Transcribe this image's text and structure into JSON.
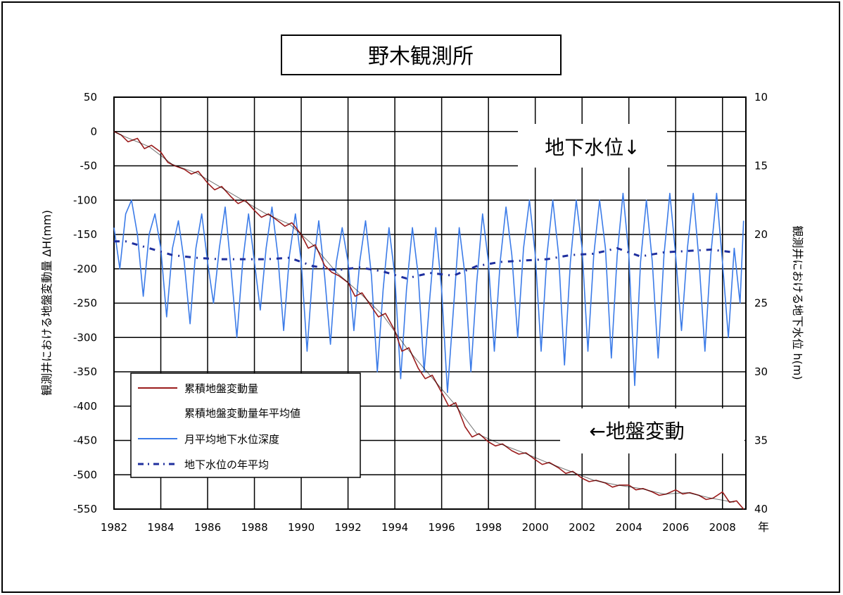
{
  "chart_data": {
    "type": "line",
    "title": "野木観測所",
    "x_unit_label": "年",
    "x_ticks": [
      1982,
      1984,
      1986,
      1988,
      1990,
      1992,
      1994,
      1996,
      1998,
      2000,
      2002,
      2004,
      2006,
      2008
    ],
    "x_tick_labels": [
      "1982",
      "1984",
      "1986",
      "1988",
      "1990",
      "1992",
      "1994",
      "1996",
      "1998",
      "2000",
      "2002",
      "2004",
      "2006",
      "2008"
    ],
    "xlim": [
      1982,
      2009
    ],
    "ylabel_left": "観測井における地盤変動量 ΔH(mm)",
    "ylim_left": [
      50,
      -550
    ],
    "yticks_left": [
      50,
      0,
      -50,
      -100,
      -150,
      -200,
      -250,
      -300,
      -350,
      -400,
      -450,
      -500,
      -550
    ],
    "ylabel_right": "観測井における地下水位 h(m)",
    "ylim_right": [
      10,
      40
    ],
    "yticks_right": [
      10,
      15,
      20,
      25,
      30,
      35,
      40
    ],
    "grid": true,
    "annotations": [
      {
        "text": "地下水位↓"
      },
      {
        "text": "←地盤変動"
      }
    ],
    "legend": {
      "placement": "lower-left",
      "entries": [
        "累積地盤変動量",
        "累積地盤変動量年平均値",
        "月平均地下水位深度",
        "地下水位の年平均"
      ]
    },
    "series": [
      {
        "name": "累積地盤変動量",
        "axis": "left",
        "style": "solid",
        "color": "#9b1c1c",
        "x": [
          1982.0,
          1982.3,
          1982.6,
          1983.0,
          1983.3,
          1983.6,
          1984.0,
          1984.3,
          1984.6,
          1985.0,
          1985.3,
          1985.6,
          1986.0,
          1986.3,
          1986.6,
          1987.0,
          1987.3,
          1987.6,
          1988.0,
          1988.3,
          1988.6,
          1989.0,
          1989.3,
          1989.6,
          1990.0,
          1990.3,
          1990.6,
          1991.0,
          1991.3,
          1991.6,
          1992.0,
          1992.3,
          1992.6,
          1993.0,
          1993.3,
          1993.6,
          1994.0,
          1994.3,
          1994.6,
          1995.0,
          1995.3,
          1995.6,
          1996.0,
          1996.3,
          1996.6,
          1997.0,
          1997.3,
          1997.6,
          1998.0,
          1998.3,
          1998.6,
          1999.0,
          1999.3,
          1999.6,
          2000.0,
          2000.3,
          2000.6,
          2001.0,
          2001.3,
          2001.6,
          2002.0,
          2002.3,
          2002.6,
          2003.0,
          2003.3,
          2003.6,
          2004.0,
          2004.3,
          2004.6,
          2005.0,
          2005.3,
          2005.6,
          2006.0,
          2006.3,
          2006.6,
          2007.0,
          2007.3,
          2007.6,
          2008.0,
          2008.3,
          2008.6,
          2008.9
        ],
        "values": [
          0,
          -5,
          -15,
          -10,
          -25,
          -20,
          -30,
          -45,
          -50,
          -55,
          -62,
          -58,
          -75,
          -85,
          -80,
          -95,
          -105,
          -100,
          -115,
          -125,
          -120,
          -130,
          -138,
          -133,
          -150,
          -170,
          -165,
          -195,
          -205,
          -210,
          -220,
          -240,
          -235,
          -255,
          -270,
          -265,
          -290,
          -320,
          -315,
          -345,
          -360,
          -355,
          -380,
          -400,
          -395,
          -430,
          -445,
          -440,
          -452,
          -458,
          -455,
          -465,
          -470,
          -468,
          -478,
          -485,
          -482,
          -490,
          -498,
          -495,
          -505,
          -510,
          -508,
          -512,
          -518,
          -515,
          -515,
          -522,
          -520,
          -525,
          -530,
          -528,
          -522,
          -528,
          -526,
          -530,
          -536,
          -534,
          -525,
          -540,
          -538,
          -550
        ]
      },
      {
        "name": "累積地盤変動量年平均値",
        "axis": "left",
        "style": "solid",
        "color": "#000000",
        "x": [
          1982.0,
          1982.5,
          1983.5,
          1984.5,
          1985.5,
          1986.5,
          1987.5,
          1988.5,
          1989.5,
          1990.5,
          1991.5,
          1992.5,
          1993.5,
          1994.5,
          1995.5,
          1996.5,
          1997.5,
          1998.5,
          1999.5,
          2000.5,
          2001.5,
          2002.5,
          2003.5,
          2004.5,
          2005.5,
          2006.5,
          2007.5,
          2008.5
        ],
        "values": [
          0,
          -8,
          -22,
          -48,
          -60,
          -80,
          -100,
          -120,
          -135,
          -165,
          -205,
          -235,
          -268,
          -315,
          -355,
          -395,
          -440,
          -455,
          -468,
          -482,
          -495,
          -508,
          -515,
          -520,
          -528,
          -526,
          -534,
          -540
        ]
      },
      {
        "name": "月平均地下水位深度",
        "axis": "right",
        "style": "solid",
        "color": "#3b7be8",
        "x": [
          1982.0,
          1982.25,
          1982.5,
          1982.75,
          1983.0,
          1983.25,
          1983.5,
          1983.75,
          1984.0,
          1984.25,
          1984.5,
          1984.75,
          1985.0,
          1985.25,
          1985.5,
          1985.75,
          1986.0,
          1986.25,
          1986.5,
          1986.75,
          1987.0,
          1987.25,
          1987.5,
          1987.75,
          1988.0,
          1988.25,
          1988.5,
          1988.75,
          1989.0,
          1989.25,
          1989.5,
          1989.75,
          1990.0,
          1990.25,
          1990.5,
          1990.75,
          1991.0,
          1991.25,
          1991.5,
          1991.75,
          1992.0,
          1992.25,
          1992.5,
          1992.75,
          1993.0,
          1993.25,
          1993.5,
          1993.75,
          1994.0,
          1994.25,
          1994.5,
          1994.75,
          1995.0,
          1995.25,
          1995.5,
          1995.75,
          1996.0,
          1996.25,
          1996.5,
          1996.75,
          1997.0,
          1997.25,
          1997.5,
          1997.75,
          1998.0,
          1998.25,
          1998.5,
          1998.75,
          1999.0,
          1999.25,
          1999.5,
          1999.75,
          2000.0,
          2000.25,
          2000.5,
          2000.75,
          2001.0,
          2001.25,
          2001.5,
          2001.75,
          2002.0,
          2002.25,
          2002.5,
          2002.75,
          2003.0,
          2003.25,
          2003.5,
          2003.75,
          2004.0,
          2004.25,
          2004.5,
          2004.75,
          2005.0,
          2005.25,
          2005.5,
          2005.75,
          2006.0,
          2006.25,
          2006.5,
          2006.75,
          2007.0,
          2007.25,
          2007.5,
          2007.75,
          2008.0,
          2008.25,
          2008.5,
          2008.75,
          2008.9
        ],
        "values": [
          19.5,
          22.5,
          18.5,
          17.5,
          20.0,
          24.5,
          20.0,
          18.5,
          21.0,
          26.0,
          21.0,
          19.0,
          22.0,
          26.5,
          21.0,
          18.5,
          22.0,
          25.0,
          21.0,
          18.0,
          22.5,
          27.5,
          22.0,
          18.5,
          22.0,
          25.5,
          21.0,
          18.0,
          21.5,
          27.0,
          21.5,
          18.5,
          22.0,
          28.5,
          22.5,
          19.0,
          23.0,
          28.0,
          22.0,
          19.5,
          22.0,
          27.0,
          22.0,
          19.0,
          23.0,
          30.0,
          24.0,
          19.5,
          23.0,
          30.5,
          24.0,
          19.5,
          23.0,
          30.0,
          24.5,
          19.5,
          24.0,
          31.5,
          25.5,
          19.5,
          23.0,
          30.0,
          23.5,
          18.5,
          22.0,
          28.5,
          22.0,
          18.0,
          21.5,
          27.5,
          21.0,
          17.5,
          21.5,
          28.5,
          21.5,
          17.5,
          21.5,
          29.5,
          22.0,
          17.5,
          21.0,
          28.5,
          21.5,
          17.5,
          21.0,
          29.0,
          21.5,
          17.0,
          21.5,
          31.0,
          22.0,
          17.5,
          22.0,
          29.0,
          21.5,
          17.0,
          21.5,
          27.0,
          21.0,
          17.0,
          22.0,
          28.5,
          21.5,
          17.0,
          22.0,
          27.5,
          21.0,
          25.0,
          19.0
        ]
      },
      {
        "name": "地下水位の年平均",
        "axis": "right",
        "style": "dash-dot",
        "color": "#1f2f9e",
        "x": [
          1982.0,
          1982.5,
          1983.5,
          1984.5,
          1985.5,
          1986.5,
          1987.5,
          1988.5,
          1989.5,
          1990.5,
          1991.5,
          1992.5,
          1993.5,
          1994.5,
          1995.5,
          1996.5,
          1997.5,
          1998.5,
          1999.5,
          2000.5,
          2001.5,
          2002.5,
          2003.5,
          2004.5,
          2005.5,
          2006.5,
          2007.5,
          2008.5
        ],
        "values": [
          20.5,
          20.5,
          21.0,
          21.5,
          21.7,
          21.8,
          21.8,
          21.8,
          21.7,
          22.3,
          22.6,
          22.4,
          22.7,
          23.2,
          22.8,
          23.0,
          22.3,
          22.0,
          21.9,
          21.8,
          21.5,
          21.4,
          21.0,
          21.6,
          21.3,
          21.2,
          21.1,
          21.3
        ]
      }
    ]
  }
}
